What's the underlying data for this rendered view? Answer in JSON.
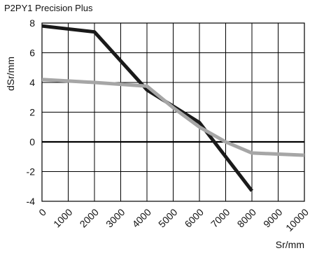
{
  "chart_data": {
    "type": "line",
    "title": "P2PY1 Precision Plus",
    "xlabel": "Sr/mm",
    "ylabel": "dSr/mm",
    "xlim": [
      0,
      10000
    ],
    "ylim": [
      -4,
      8
    ],
    "xticks": [
      "0",
      "1000",
      "2000",
      "3000",
      "4000",
      "5000",
      "6000",
      "7000",
      "8000",
      "9000",
      "10000"
    ],
    "yticks": [
      "8",
      "6",
      "4",
      "2",
      "0",
      "-2",
      "-4"
    ],
    "grid": true,
    "series": [
      {
        "color": "#1a1a1a",
        "points": [
          [
            0,
            7.8
          ],
          [
            2000,
            7.4
          ],
          [
            4000,
            3.5
          ],
          [
            6000,
            1.3
          ],
          [
            8000,
            -3.3
          ]
        ]
      },
      {
        "color": "#a6a6a6",
        "points": [
          [
            0,
            4.2
          ],
          [
            2000,
            4.0
          ],
          [
            4000,
            3.75
          ],
          [
            5000,
            2.3
          ],
          [
            6000,
            1.0
          ],
          [
            7000,
            0.0
          ],
          [
            8000,
            -0.75
          ],
          [
            10000,
            -0.9
          ]
        ]
      }
    ]
  }
}
